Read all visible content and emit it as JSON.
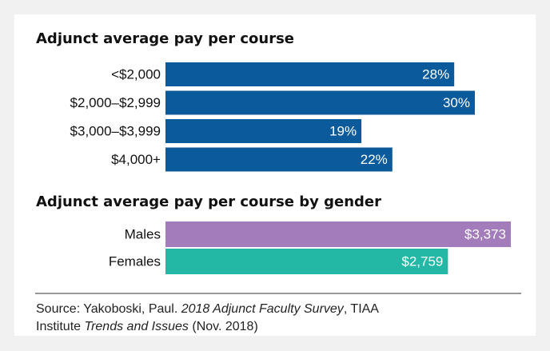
{
  "chart_data": [
    {
      "type": "bar",
      "orientation": "horizontal",
      "title": "Adjunct average pay per course",
      "categories": [
        "<$2,000",
        "$2,000–$2,999",
        "$3,000–$3,999",
        "$4,000+"
      ],
      "values": [
        28,
        30,
        19,
        22
      ],
      "value_labels": [
        "28%",
        "30%",
        "19%",
        "22%"
      ],
      "color": "#0b5a9b"
    },
    {
      "type": "bar",
      "orientation": "horizontal",
      "title": "Adjunct average pay per course by gender",
      "categories": [
        "Males",
        "Females"
      ],
      "values": [
        3373,
        2759
      ],
      "value_labels": [
        "$3,373",
        "$2,759"
      ],
      "colors": [
        "#a27cbb",
        "#22b8a5"
      ]
    }
  ],
  "source": [
    "Source: Yakoboski, Paul. ",
    "2018 Adjunct Faculty Survey",
    ", TIAA",
    "Institute ",
    "Trends and Issues",
    " (Nov. 2018)"
  ]
}
